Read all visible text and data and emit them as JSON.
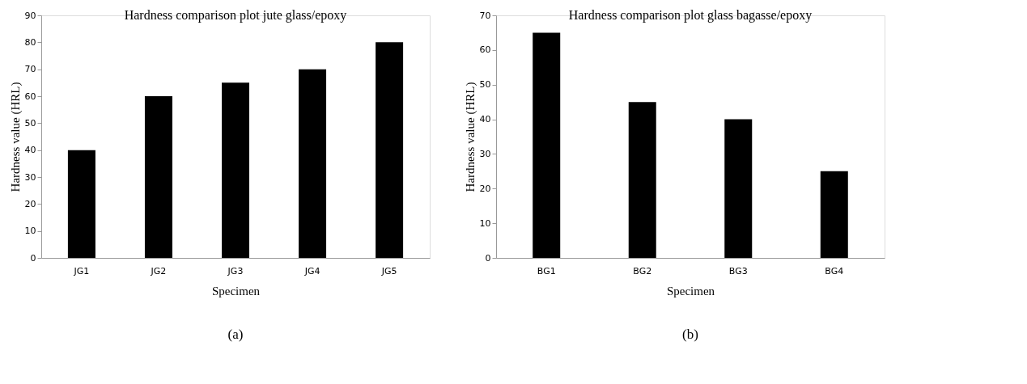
{
  "chart_data": [
    {
      "type": "bar",
      "title": "Hardness comparison plot jute glass/epoxy",
      "xlabel": "Specimen",
      "ylabel": "Hardness value (HRL)",
      "categories": [
        "JG1",
        "JG2",
        "JG3",
        "JG4",
        "JG5"
      ],
      "values": [
        40,
        60,
        65,
        70,
        80
      ],
      "color": "#000000",
      "ylim": [
        0,
        90
      ],
      "yticks": [
        0,
        10,
        20,
        30,
        40,
        50,
        60,
        70,
        80,
        90
      ],
      "grid": false,
      "annotations": [
        "(a)"
      ]
    },
    {
      "type": "bar",
      "title": "Hardness comparison plot glass bagasse/epoxy",
      "xlabel": "Specimen",
      "ylabel": "Hardness value  (HRL)",
      "categories": [
        "BG1",
        "BG2",
        "BG3",
        "BG4"
      ],
      "values": [
        65,
        45,
        40,
        25
      ],
      "color": "#000000",
      "ylim": [
        0,
        70
      ],
      "yticks": [
        0,
        10,
        20,
        30,
        40,
        50,
        60,
        70
      ],
      "grid": false,
      "annotations": [
        "(b)"
      ]
    }
  ]
}
